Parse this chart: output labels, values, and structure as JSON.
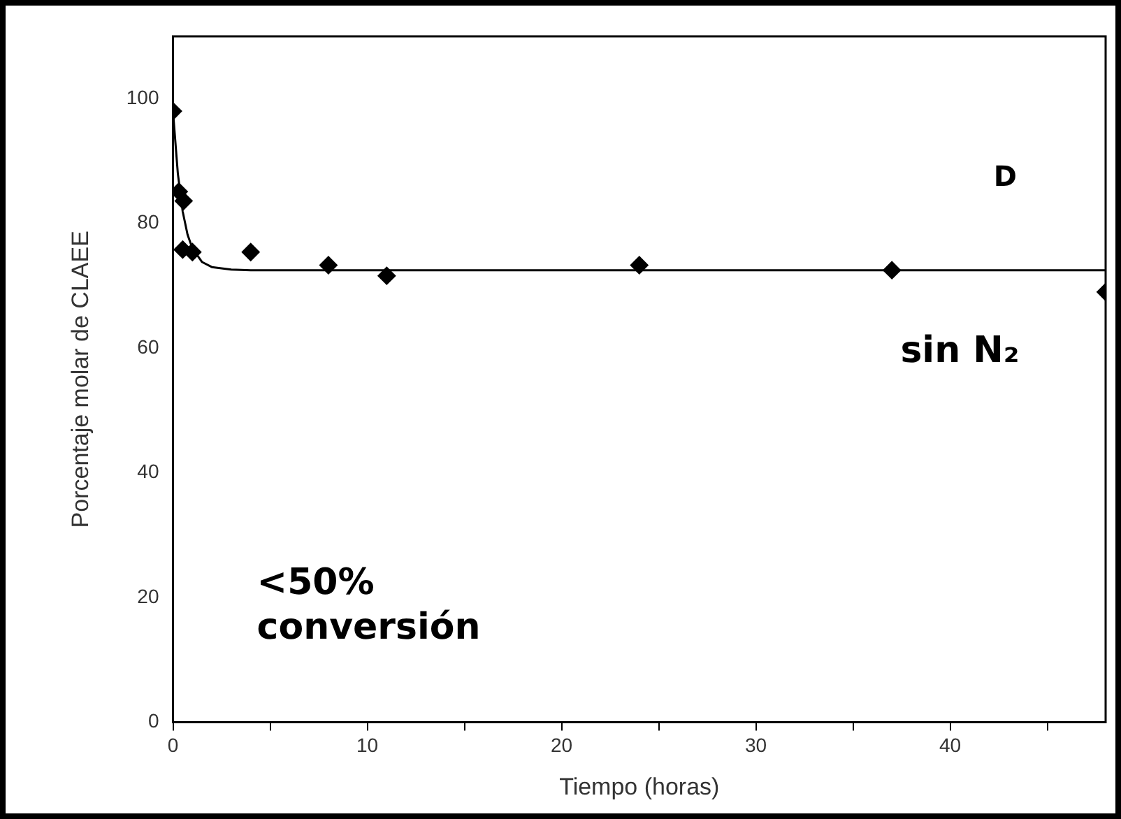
{
  "chart_data": {
    "type": "scatter",
    "xlabel": "Tiempo (horas)",
    "ylabel": "Porcentaje molar de CLAEE",
    "xlim": [
      0,
      48
    ],
    "ylim": [
      0,
      110
    ],
    "xticks": [
      0,
      {
        "value": 5,
        "label": null
      },
      10,
      {
        "value": 15,
        "label": null
      },
      20,
      {
        "value": 25,
        "label": null
      },
      30,
      {
        "value": 35,
        "label": null
      },
      40,
      {
        "value": 45,
        "label": null
      }
    ],
    "yticks": [
      0,
      20,
      40,
      60,
      80,
      100
    ],
    "grid": false,
    "legend": false,
    "marker": "diamond",
    "annotations": [
      "D",
      "sin N₂",
      "<50%\nconversión"
    ],
    "series": [
      {
        "color": "#000000",
        "x": [
          0,
          0.3,
          0.55,
          0.5,
          1,
          4,
          8,
          11,
          24,
          37,
          48
        ],
        "values": [
          98,
          85.1,
          83.6,
          75.8,
          75.4,
          75.4,
          73.3,
          71.6,
          73.3,
          72.5,
          69
        ]
      },
      {
        "type": "line",
        "color": "#000000",
        "marker": "none",
        "line_style": "solid",
        "x": [
          0,
          0.25,
          0.5,
          0.75,
          1,
          1.5,
          2,
          3,
          4,
          48
        ],
        "values": [
          98,
          88,
          81.9,
          78.2,
          76,
          73.8,
          73,
          72.6,
          72.5,
          72.5
        ]
      }
    ]
  }
}
